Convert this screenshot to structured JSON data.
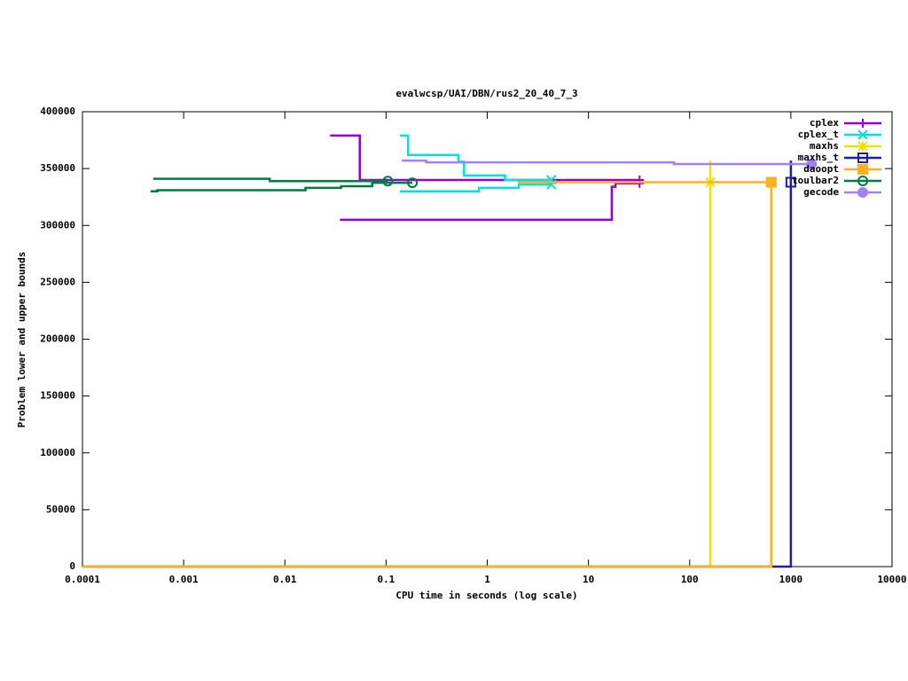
{
  "chart_data": {
    "type": "line",
    "title": "evalwcsp/UAI/DBN/rus2_20_40_7_3",
    "x_label": "CPU time in seconds (log scale)",
    "y_label": "Problem lower and upper bounds",
    "log_x": true,
    "legend": "top-right",
    "xlim": [
      0.0001,
      10000
    ],
    "xticks": [
      0.0001,
      0.001,
      0.01,
      0.1,
      1,
      10,
      100,
      1000,
      10000
    ],
    "ylim": [
      0,
      400000
    ],
    "yticks": [
      0,
      50000,
      100000,
      150000,
      200000,
      250000,
      300000,
      350000,
      400000
    ],
    "series": [
      {
        "name": "cplex",
        "color": "#9400d3",
        "marker": "plus",
        "x": [
          0.028,
          0.055,
          0.055,
          32,
          null,
          0.035,
          17,
          17,
          18.5,
          18.5,
          32
        ],
        "values": [
          379000,
          379000,
          340000,
          340000,
          null,
          305000,
          305000,
          334000,
          334000,
          337000,
          337000
        ]
      },
      {
        "name": "cplex_t",
        "color": "#00e0e0",
        "marker": "x",
        "x": [
          0.137,
          0.165,
          0.165,
          0.52,
          0.52,
          0.59,
          0.59,
          1.5,
          1.5,
          4.3,
          null,
          0.137,
          0.83,
          0.83,
          2.05,
          2.05,
          4.3
        ],
        "values": [
          379000,
          379000,
          362000,
          362000,
          356000,
          356000,
          344000,
          344000,
          340000,
          340000,
          null,
          330000,
          330000,
          333000,
          333000,
          336000,
          336000
        ]
      },
      {
        "name": "maxhs",
        "color": "#f0e000",
        "marker": "star",
        "x": [
          0.0001,
          160,
          160,
          160
        ],
        "values": [
          0,
          0,
          357000,
          338000
        ]
      },
      {
        "name": "maxhs_t",
        "color": "#1c1cb0",
        "marker": "square",
        "x": [
          0.0001,
          1000,
          1000,
          1000
        ],
        "values": [
          0,
          0,
          357000,
          338000
        ]
      },
      {
        "name": "daoopt",
        "color": "#ffb020",
        "marker": "filled-square",
        "x": [
          0.0001,
          640,
          640,
          null,
          2,
          640
        ],
        "values": [
          0,
          0,
          338000,
          null,
          338000,
          338000
        ]
      },
      {
        "name": "toulbar2",
        "color": "#007a40",
        "marker": "circle",
        "x": [
          0.0005,
          0.0071,
          0.0071,
          0.104,
          null,
          0.00047,
          0.00055,
          0.00055,
          0.016,
          0.016,
          0.036,
          0.036,
          0.073,
          0.073,
          0.182
        ],
        "values": [
          341000,
          341000,
          339000,
          339000,
          null,
          330000,
          330000,
          331000,
          331000,
          333000,
          333000,
          334500,
          334500,
          337500,
          337500
        ]
      },
      {
        "name": "gecode",
        "color": "#a080ff",
        "marker": "filled-circle",
        "x": [
          0.143,
          0.25,
          0.25,
          70,
          70,
          1600
        ],
        "values": [
          357000,
          357000,
          355500,
          355500,
          354000,
          354000
        ]
      }
    ]
  }
}
